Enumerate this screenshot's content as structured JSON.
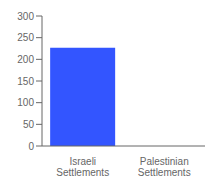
{
  "chart_data": {
    "type": "bar",
    "categories": [
      "Israeli\nSettlements",
      "Palestinian\nSettlements"
    ],
    "values": [
      227,
      0
    ],
    "color": "#3355FF",
    "ylim": [
      0,
      300
    ],
    "yticks": [
      0,
      50,
      100,
      150,
      200,
      250,
      300
    ]
  }
}
